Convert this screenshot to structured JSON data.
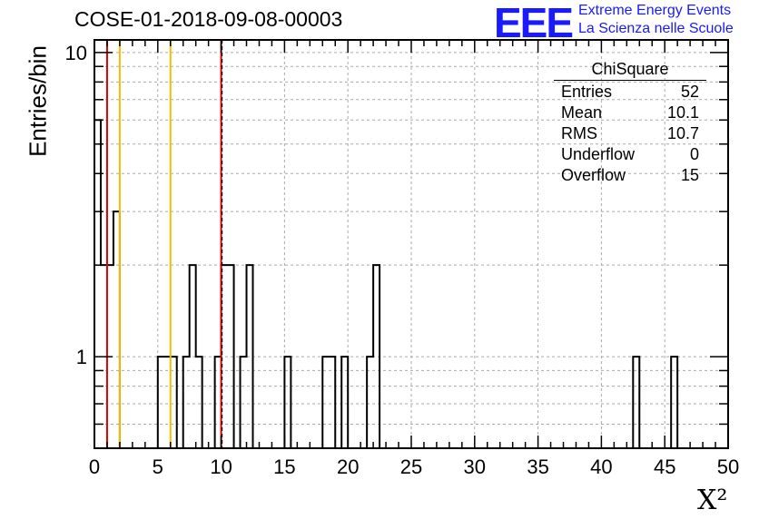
{
  "title": "COSE-01-2018-09-08-00003",
  "logo": {
    "text": "EEE",
    "line1": "Extreme Energy Events",
    "line2": "La Scienza nelle Scuole",
    "color": "#1a1aff"
  },
  "stats": {
    "title": "ChiSquare",
    "rows": [
      {
        "label": "Entries",
        "value": "52"
      },
      {
        "label": "Mean",
        "value": "10.1"
      },
      {
        "label": "RMS",
        "value": "10.7"
      },
      {
        "label": "Underflow",
        "value": "0"
      },
      {
        "label": "Overflow",
        "value": "15"
      }
    ]
  },
  "chart_data": {
    "type": "bar",
    "style": "step-histogram",
    "title": "COSE-01-2018-09-08-00003",
    "xlabel": "X²",
    "ylabel": "Entries/bin",
    "xlim": [
      0,
      50
    ],
    "ylim": [
      0.5,
      11
    ],
    "yscale": "log",
    "grid": true,
    "bin_width": 0.5,
    "x_ticks": [
      "0",
      "5",
      "10",
      "15",
      "20",
      "25",
      "30",
      "35",
      "40",
      "45",
      "50"
    ],
    "y_ticks": [
      "1",
      "10"
    ],
    "bins": [
      {
        "x": 0.0,
        "count": 6
      },
      {
        "x": 0.5,
        "count": 2
      },
      {
        "x": 1.0,
        "count": 2
      },
      {
        "x": 1.5,
        "count": 3
      },
      {
        "x": 5.0,
        "count": 1
      },
      {
        "x": 5.5,
        "count": 1
      },
      {
        "x": 6.0,
        "count": 1
      },
      {
        "x": 7.0,
        "count": 1
      },
      {
        "x": 7.5,
        "count": 2
      },
      {
        "x": 8.0,
        "count": 1
      },
      {
        "x": 9.5,
        "count": 1
      },
      {
        "x": 10.0,
        "count": 2
      },
      {
        "x": 10.5,
        "count": 2
      },
      {
        "x": 11.5,
        "count": 1
      },
      {
        "x": 12.0,
        "count": 2
      },
      {
        "x": 15.0,
        "count": 1
      },
      {
        "x": 18.0,
        "count": 1
      },
      {
        "x": 18.5,
        "count": 1
      },
      {
        "x": 19.5,
        "count": 1
      },
      {
        "x": 21.5,
        "count": 1
      },
      {
        "x": 22.0,
        "count": 2
      },
      {
        "x": 42.5,
        "count": 1
      },
      {
        "x": 45.5,
        "count": 1
      }
    ],
    "vertical_lines": [
      {
        "x": 1,
        "color": "#e00000"
      },
      {
        "x": 2,
        "color": "#f0c000"
      },
      {
        "x": 6,
        "color": "#f0c000"
      },
      {
        "x": 10,
        "color": "#e00000"
      }
    ],
    "dashed_line": {
      "x": 10,
      "color": "#000000"
    }
  }
}
